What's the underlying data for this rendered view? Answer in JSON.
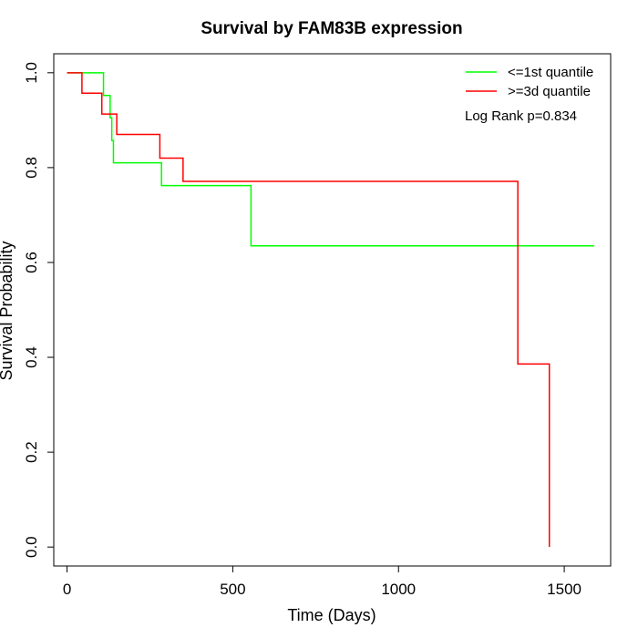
{
  "chart_data": {
    "type": "line",
    "title": "Survival by FAM83B expression",
    "xlabel": "Time (Days)",
    "ylabel": "Survival Probability",
    "xlim": [
      -40,
      1640
    ],
    "ylim": [
      -0.04,
      1.04
    ],
    "x_ticks": [
      0,
      500,
      1000,
      1500
    ],
    "y_ticks": [
      0.0,
      0.2,
      0.4,
      0.6,
      0.8,
      1.0
    ],
    "x_tick_labels": [
      "0",
      "500",
      "1000",
      "1500"
    ],
    "y_tick_labels": [
      "0.0",
      "0.2",
      "0.4",
      "0.6",
      "0.8",
      "1.0"
    ],
    "grid": false,
    "legend_position": "top-right",
    "annotation": "Log Rank p=0.834",
    "series": [
      {
        "name": "<=1st quantile",
        "color": "#00ff00",
        "step": "post",
        "x": [
          0,
          110,
          130,
          135,
          140,
          285,
          555,
          1590
        ],
        "y": [
          1.0,
          0.952,
          0.905,
          0.857,
          0.81,
          0.762,
          0.635,
          0.635
        ]
      },
      {
        "name": ">=3d quantile",
        "color": "#ff0000",
        "step": "post",
        "x": [
          0,
          45,
          105,
          150,
          280,
          350,
          1360,
          1455,
          1455
        ],
        "y": [
          1.0,
          0.957,
          0.913,
          0.87,
          0.82,
          0.771,
          0.386,
          0.0,
          0.0
        ]
      }
    ]
  }
}
